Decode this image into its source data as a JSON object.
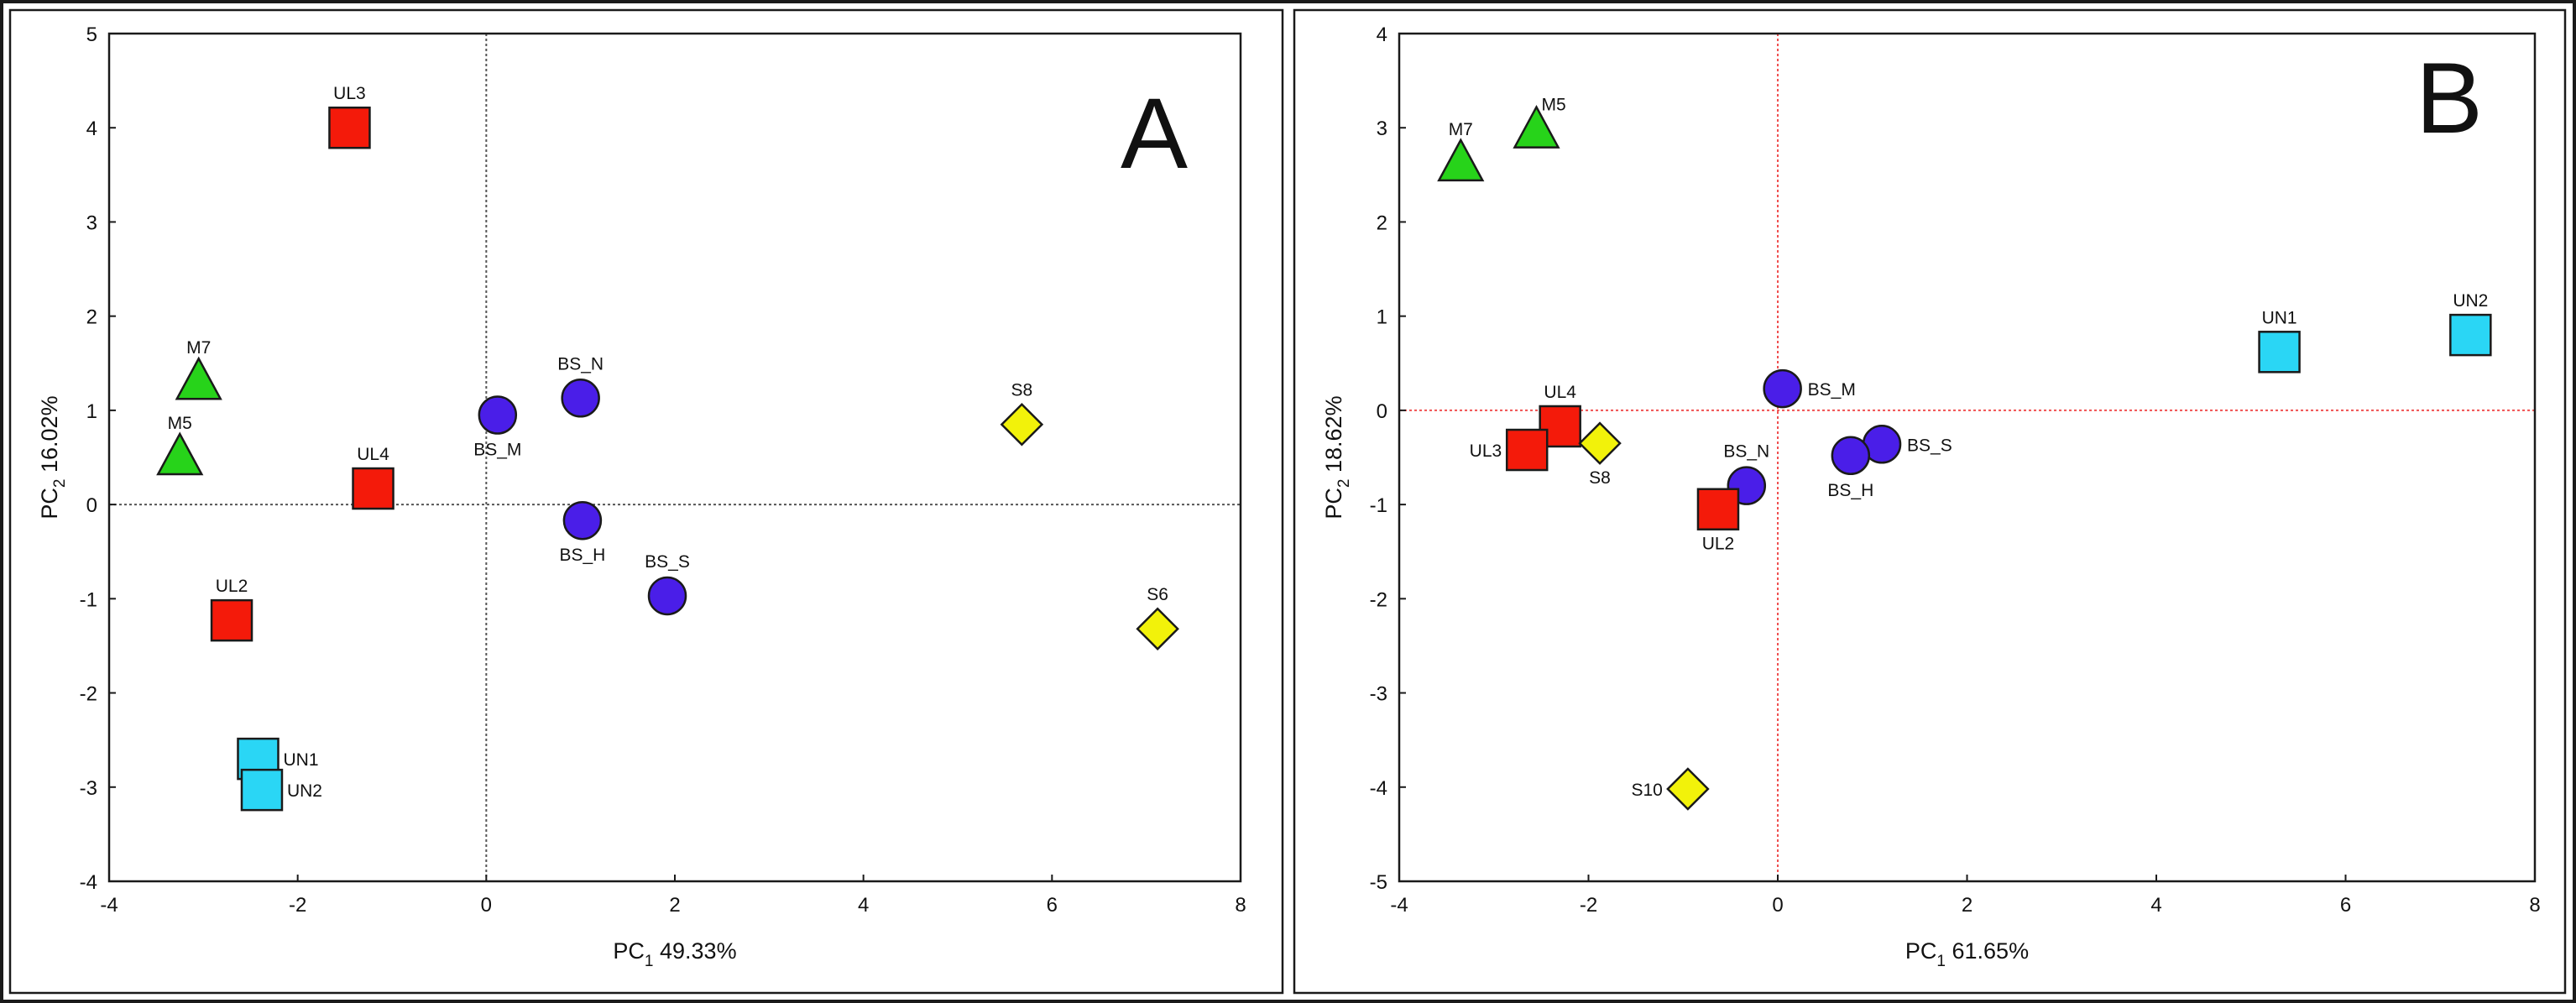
{
  "colors": {
    "red": "#f41a0a",
    "green": "#27d31a",
    "blue": "#4a1ee8",
    "cyan": "#2ad6f5",
    "yellow": "#f2f20a",
    "frame": "#1a1a1a",
    "ref_line_A": "#555555",
    "ref_line_B": "#f05050"
  },
  "chart_data": [
    {
      "type": "scatter",
      "panel_label": "A",
      "xlabel": {
        "prefix": "PC",
        "sub": "1",
        "suffix": "  49.33%"
      },
      "ylabel": {
        "prefix": "PC",
        "sub": "2",
        "suffix": " 16.02%"
      },
      "xlim": [
        -4,
        8
      ],
      "ylim": [
        -4,
        5
      ],
      "x_ticks": [
        -4,
        -2,
        0,
        2,
        4,
        6,
        8
      ],
      "y_ticks": [
        -4,
        -3,
        -2,
        -1,
        0,
        1,
        2,
        3,
        4,
        5
      ],
      "grid": false,
      "reference_lines": {
        "x": 0,
        "y": 0,
        "style": "dotted"
      },
      "points": [
        {
          "label": "UL3",
          "x": -1.45,
          "y": 4.0,
          "group": "UL",
          "marker": "square",
          "color": "red",
          "label_pos": "above"
        },
        {
          "label": "UL4",
          "x": -1.2,
          "y": 0.17,
          "group": "UL",
          "marker": "square",
          "color": "red",
          "label_pos": "above"
        },
        {
          "label": "UL2",
          "x": -2.7,
          "y": -1.23,
          "group": "UL",
          "marker": "square",
          "color": "red",
          "label_pos": "above"
        },
        {
          "label": "M7",
          "x": -3.05,
          "y": 1.3,
          "group": "M",
          "marker": "triangle",
          "color": "green",
          "label_pos": "above"
        },
        {
          "label": "M5",
          "x": -3.25,
          "y": 0.5,
          "group": "M",
          "marker": "triangle",
          "color": "green",
          "label_pos": "above"
        },
        {
          "label": "BS_M",
          "x": 0.12,
          "y": 0.95,
          "group": "BS",
          "marker": "circle",
          "color": "blue",
          "label_pos": "below"
        },
        {
          "label": "BS_N",
          "x": 1.0,
          "y": 1.13,
          "group": "BS",
          "marker": "circle",
          "color": "blue",
          "label_pos": "above"
        },
        {
          "label": "BS_H",
          "x": 1.02,
          "y": -0.17,
          "group": "BS",
          "marker": "circle",
          "color": "blue",
          "label_pos": "below"
        },
        {
          "label": "BS_S",
          "x": 1.92,
          "y": -0.97,
          "group": "BS",
          "marker": "circle",
          "color": "blue",
          "label_pos": "above"
        },
        {
          "label": "S8",
          "x": 5.68,
          "y": 0.85,
          "group": "S",
          "marker": "diamond",
          "color": "yellow",
          "label_pos": "above"
        },
        {
          "label": "S6",
          "x": 7.12,
          "y": -1.32,
          "group": "S",
          "marker": "diamond",
          "color": "yellow",
          "label_pos": "above"
        },
        {
          "label": "UN1",
          "x": -2.42,
          "y": -2.7,
          "group": "UN",
          "marker": "square",
          "color": "cyan",
          "label_pos": "right"
        },
        {
          "label": "UN2",
          "x": -2.38,
          "y": -3.03,
          "group": "UN",
          "marker": "square",
          "color": "cyan",
          "label_pos": "right"
        }
      ]
    },
    {
      "type": "scatter",
      "panel_label": "B",
      "xlabel": {
        "prefix": "PC",
        "sub": "1",
        "suffix": "  61.65%"
      },
      "ylabel": {
        "prefix": "PC",
        "sub": "2",
        "suffix": " 18.62%"
      },
      "xlim": [
        -4,
        8
      ],
      "ylim": [
        -5,
        4
      ],
      "x_ticks": [
        -4,
        -2,
        0,
        2,
        4,
        6,
        8
      ],
      "y_ticks": [
        -5,
        -4,
        -3,
        -2,
        -1,
        0,
        1,
        2,
        3,
        4
      ],
      "grid": false,
      "reference_lines": {
        "x": 0,
        "y": 0,
        "style": "dotted"
      },
      "points": [
        {
          "label": "M7",
          "x": -3.35,
          "y": 2.62,
          "group": "M",
          "marker": "triangle",
          "color": "green",
          "label_pos": "above"
        },
        {
          "label": "M5",
          "x": -2.55,
          "y": 2.97,
          "group": "M",
          "marker": "triangle",
          "color": "green",
          "label_pos": "above-right"
        },
        {
          "label": "UN1",
          "x": 5.3,
          "y": 0.62,
          "group": "UN",
          "marker": "square",
          "color": "cyan",
          "label_pos": "above"
        },
        {
          "label": "UN2",
          "x": 7.32,
          "y": 0.8,
          "group": "UN",
          "marker": "square",
          "color": "cyan",
          "label_pos": "above"
        },
        {
          "label": "BS_M",
          "x": 0.05,
          "y": 0.23,
          "group": "BS",
          "marker": "circle",
          "color": "blue",
          "label_pos": "right"
        },
        {
          "label": "UL4",
          "x": -2.3,
          "y": -0.17,
          "group": "UL",
          "marker": "square",
          "color": "red",
          "label_pos": "above"
        },
        {
          "label": "UL3",
          "x": -2.65,
          "y": -0.42,
          "group": "UL",
          "marker": "square",
          "color": "red",
          "label_pos": "left"
        },
        {
          "label": "S8",
          "x": -1.88,
          "y": -0.35,
          "group": "S",
          "marker": "diamond",
          "color": "yellow",
          "label_pos": "below"
        },
        {
          "label": "BS_N",
          "x": -0.33,
          "y": -0.8,
          "group": "BS",
          "marker": "circle",
          "color": "blue",
          "label_pos": "above"
        },
        {
          "label": "UL2",
          "x": -0.63,
          "y": -1.05,
          "group": "UL",
          "marker": "square",
          "color": "red",
          "label_pos": "below"
        },
        {
          "label": "BS_S",
          "x": 1.1,
          "y": -0.36,
          "group": "BS",
          "marker": "circle",
          "color": "blue",
          "label_pos": "right"
        },
        {
          "label": "BS_H",
          "x": 0.77,
          "y": -0.48,
          "group": "BS",
          "marker": "circle",
          "color": "blue",
          "label_pos": "below"
        },
        {
          "label": "S10",
          "x": -0.95,
          "y": -4.02,
          "group": "S",
          "marker": "diamond",
          "color": "yellow",
          "label_pos": "left"
        }
      ]
    }
  ]
}
